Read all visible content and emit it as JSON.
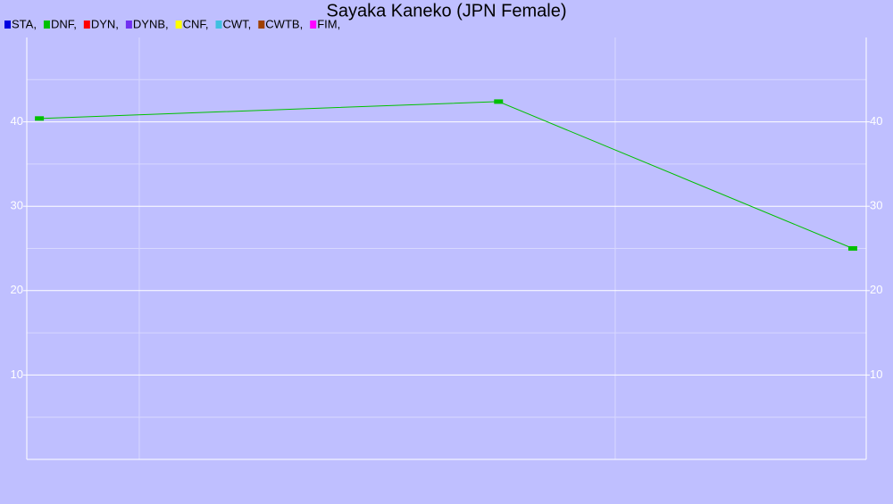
{
  "chart_data": {
    "type": "line",
    "title": "Sayaka Kaneko (JPN Female)",
    "x": [
      1.5,
      56.2,
      98.4
    ],
    "xlim": [
      0,
      100
    ],
    "x_grid": [
      13.4,
      70.1
    ],
    "ylim": [
      0,
      50
    ],
    "yticks": [
      10,
      20,
      30,
      40
    ],
    "y_minor_grid": [
      5,
      15,
      25,
      35,
      45
    ],
    "grid": true,
    "right_axis_labels": true,
    "legend": "top-left",
    "series": [
      {
        "name": "STA,",
        "color": "#0000e0",
        "values": [
          null,
          null,
          null
        ]
      },
      {
        "name": "DNF,",
        "color": "#00c000",
        "values": [
          40.4,
          42.4,
          25.0
        ]
      },
      {
        "name": "DYN,",
        "color": "#ff0000",
        "values": [
          null,
          null,
          null
        ]
      },
      {
        "name": "DYNB,",
        "color": "#7030f0",
        "values": [
          null,
          null,
          null
        ]
      },
      {
        "name": "CNF,",
        "color": "#ffff00",
        "values": [
          null,
          null,
          null
        ]
      },
      {
        "name": "CWT,",
        "color": "#40c0e0",
        "values": [
          null,
          null,
          null
        ]
      },
      {
        "name": "CWTB,",
        "color": "#a04000",
        "values": [
          null,
          null,
          null
        ]
      },
      {
        "name": "FIM,",
        "color": "#ff00ff",
        "values": [
          null,
          null,
          null
        ]
      }
    ]
  }
}
